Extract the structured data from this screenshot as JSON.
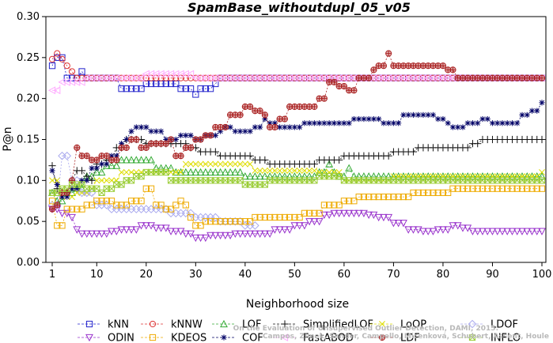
{
  "chart_data": {
    "type": "line",
    "title": "SpamBase_withoutdupl_05_v05",
    "xlabel": "Neighborhood size",
    "ylabel": "P@n",
    "xlim": [
      1,
      100
    ],
    "ylim": [
      0,
      0.3
    ],
    "xticks": [
      1,
      10,
      20,
      30,
      40,
      50,
      60,
      70,
      80,
      90,
      100
    ],
    "yticks": [
      0.0,
      0.05,
      0.1,
      0.15,
      0.2,
      0.25,
      0.3
    ],
    "ytick_labels": [
      "0.00",
      "0.05",
      "0.10",
      "0.15",
      "0.20",
      "0.25",
      "0.30"
    ],
    "grid": false,
    "legend_position": "bottom",
    "watermark": [
      "Campos, Zimek, Sander, Campello, Micenková, Schubert, Assent, Houle",
      "On the Evaluation of Unsupervised Outlier Detection, DAMI, 2015."
    ],
    "series": [
      {
        "name": "kNN",
        "color": "#2222cc",
        "marker": "square",
        "points": [
          [
            1,
            0.24
          ],
          [
            2,
            0.25
          ],
          [
            3,
            0.25
          ],
          [
            4,
            0.225
          ],
          [
            6,
            0.225
          ],
          [
            7,
            0.233
          ],
          [
            8,
            0.225
          ],
          [
            14,
            0.225
          ],
          [
            15,
            0.212
          ],
          [
            19,
            0.212
          ],
          [
            20,
            0.218
          ],
          [
            26,
            0.218
          ],
          [
            27,
            0.212
          ],
          [
            29,
            0.212
          ],
          [
            30,
            0.205
          ],
          [
            31,
            0.212
          ],
          [
            33,
            0.212
          ],
          [
            34,
            0.218
          ],
          [
            35,
            0.225
          ],
          [
            100,
            0.225
          ]
        ]
      },
      {
        "name": "kNNW",
        "color": "#dd3333",
        "marker": "circle",
        "points": [
          [
            1,
            0.248
          ],
          [
            2,
            0.255
          ],
          [
            3,
            0.248
          ],
          [
            4,
            0.24
          ],
          [
            5,
            0.233
          ],
          [
            6,
            0.225
          ],
          [
            100,
            0.225
          ]
        ]
      },
      {
        "name": "LOF",
        "color": "#33aa33",
        "marker": "triangle-up",
        "points": [
          [
            1,
            0.085
          ],
          [
            2,
            0.075
          ],
          [
            4,
            0.085
          ],
          [
            6,
            0.09
          ],
          [
            8,
            0.105
          ],
          [
            10,
            0.11
          ],
          [
            12,
            0.118
          ],
          [
            15,
            0.125
          ],
          [
            18,
            0.125
          ],
          [
            22,
            0.115
          ],
          [
            26,
            0.11
          ],
          [
            30,
            0.11
          ],
          [
            40,
            0.105
          ],
          [
            55,
            0.11
          ],
          [
            57,
            0.12
          ],
          [
            58,
            0.11
          ],
          [
            59,
            0.105
          ],
          [
            61,
            0.115
          ],
          [
            62,
            0.105
          ],
          [
            70,
            0.105
          ],
          [
            80,
            0.105
          ],
          [
            90,
            0.105
          ],
          [
            100,
            0.105
          ]
        ]
      },
      {
        "name": "SimplifiedLOF",
        "color": "#111111",
        "marker": "plus",
        "points": [
          [
            1,
            0.118
          ],
          [
            2,
            0.09
          ],
          [
            3,
            0.085
          ],
          [
            5,
            0.1
          ],
          [
            6,
            0.112
          ],
          [
            8,
            0.105
          ],
          [
            9,
            0.1
          ],
          [
            10,
            0.12
          ],
          [
            12,
            0.125
          ],
          [
            14,
            0.14
          ],
          [
            16,
            0.15
          ],
          [
            18,
            0.15
          ],
          [
            20,
            0.145
          ],
          [
            26,
            0.145
          ],
          [
            29,
            0.14
          ],
          [
            31,
            0.135
          ],
          [
            35,
            0.13
          ],
          [
            39,
            0.13
          ],
          [
            42,
            0.125
          ],
          [
            45,
            0.12
          ],
          [
            52,
            0.12
          ],
          [
            55,
            0.125
          ],
          [
            60,
            0.13
          ],
          [
            66,
            0.13
          ],
          [
            70,
            0.135
          ],
          [
            75,
            0.14
          ],
          [
            83,
            0.14
          ],
          [
            86,
            0.145
          ],
          [
            88,
            0.15
          ],
          [
            100,
            0.15
          ]
        ]
      },
      {
        "name": "LoOP",
        "color": "#dddd00",
        "marker": "x",
        "points": [
          [
            1,
            0.1
          ],
          [
            3,
            0.08
          ],
          [
            6,
            0.085
          ],
          [
            9,
            0.09
          ],
          [
            10,
            0.1
          ],
          [
            15,
            0.11
          ],
          [
            22,
            0.11
          ],
          [
            28,
            0.12
          ],
          [
            33,
            0.12
          ],
          [
            42,
            0.112
          ],
          [
            50,
            0.112
          ],
          [
            55,
            0.11
          ],
          [
            60,
            0.1
          ],
          [
            70,
            0.105
          ],
          [
            80,
            0.105
          ],
          [
            90,
            0.105
          ],
          [
            100,
            0.11
          ]
        ]
      },
      {
        "name": "LDOF",
        "color": "#aaaaee",
        "marker": "diamond",
        "points": [
          [
            1,
            0.07
          ],
          [
            3,
            0.13
          ],
          [
            5,
            0.1
          ],
          [
            7,
            0.085
          ],
          [
            10,
            0.07
          ],
          [
            13,
            0.065
          ],
          [
            18,
            0.065
          ],
          [
            22,
            0.065
          ],
          [
            25,
            0.06
          ],
          [
            30,
            0.055
          ],
          [
            35,
            0.05
          ],
          [
            40,
            0.045
          ],
          [
            42,
            0.045
          ]
        ]
      },
      {
        "name": "ODIN",
        "color": "#9933cc",
        "marker": "triangle-down",
        "points": [
          [
            1,
            0.065
          ],
          [
            3,
            0.06
          ],
          [
            5,
            0.055
          ],
          [
            6,
            0.04
          ],
          [
            7,
            0.035
          ],
          [
            10,
            0.035
          ],
          [
            13,
            0.038
          ],
          [
            15,
            0.04
          ],
          [
            17,
            0.04
          ],
          [
            19,
            0.045
          ],
          [
            22,
            0.042
          ],
          [
            25,
            0.038
          ],
          [
            28,
            0.035
          ],
          [
            30,
            0.03
          ],
          [
            33,
            0.033
          ],
          [
            38,
            0.035
          ],
          [
            42,
            0.035
          ],
          [
            46,
            0.04
          ],
          [
            50,
            0.045
          ],
          [
            53,
            0.05
          ],
          [
            56,
            0.058
          ],
          [
            58,
            0.06
          ],
          [
            62,
            0.06
          ],
          [
            65,
            0.058
          ],
          [
            67,
            0.055
          ],
          [
            70,
            0.048
          ],
          [
            73,
            0.04
          ],
          [
            76,
            0.038
          ],
          [
            79,
            0.04
          ],
          [
            82,
            0.045
          ],
          [
            84,
            0.042
          ],
          [
            86,
            0.038
          ],
          [
            100,
            0.038
          ]
        ]
      },
      {
        "name": "KDEOS",
        "color": "#eeaa00",
        "marker": "square",
        "points": [
          [
            1,
            0.075
          ],
          [
            2,
            0.045
          ],
          [
            4,
            0.065
          ],
          [
            8,
            0.07
          ],
          [
            10,
            0.075
          ],
          [
            14,
            0.07
          ],
          [
            17,
            0.075
          ],
          [
            19,
            0.075
          ],
          [
            20,
            0.09
          ],
          [
            22,
            0.07
          ],
          [
            24,
            0.065
          ],
          [
            26,
            0.07
          ],
          [
            27,
            0.075
          ],
          [
            28,
            0.07
          ],
          [
            29,
            0.055
          ],
          [
            30,
            0.045
          ],
          [
            32,
            0.05
          ],
          [
            42,
            0.055
          ],
          [
            50,
            0.055
          ],
          [
            52,
            0.06
          ],
          [
            56,
            0.07
          ],
          [
            60,
            0.075
          ],
          [
            63,
            0.08
          ],
          [
            70,
            0.08
          ],
          [
            74,
            0.085
          ],
          [
            80,
            0.085
          ],
          [
            82,
            0.09
          ],
          [
            90,
            0.09
          ],
          [
            100,
            0.09
          ]
        ]
      },
      {
        "name": "COF",
        "color": "#000066",
        "marker": "star",
        "points": [
          [
            1,
            0.112
          ],
          [
            2,
            0.095
          ],
          [
            3,
            0.08
          ],
          [
            5,
            0.09
          ],
          [
            7,
            0.1
          ],
          [
            9,
            0.115
          ],
          [
            11,
            0.12
          ],
          [
            13,
            0.13
          ],
          [
            15,
            0.145
          ],
          [
            16,
            0.15
          ],
          [
            17,
            0.16
          ],
          [
            18,
            0.165
          ],
          [
            21,
            0.16
          ],
          [
            24,
            0.15
          ],
          [
            27,
            0.155
          ],
          [
            30,
            0.15
          ],
          [
            32,
            0.155
          ],
          [
            35,
            0.16
          ],
          [
            36,
            0.165
          ],
          [
            38,
            0.16
          ],
          [
            42,
            0.165
          ],
          [
            44,
            0.175
          ],
          [
            45,
            0.17
          ],
          [
            47,
            0.165
          ],
          [
            50,
            0.165
          ],
          [
            52,
            0.17
          ],
          [
            55,
            0.17
          ],
          [
            60,
            0.17
          ],
          [
            62,
            0.175
          ],
          [
            65,
            0.175
          ],
          [
            68,
            0.17
          ],
          [
            72,
            0.18
          ],
          [
            76,
            0.18
          ],
          [
            79,
            0.175
          ],
          [
            81,
            0.17
          ],
          [
            82,
            0.165
          ],
          [
            85,
            0.17
          ],
          [
            88,
            0.175
          ],
          [
            90,
            0.17
          ],
          [
            94,
            0.17
          ],
          [
            96,
            0.18
          ],
          [
            98,
            0.185
          ],
          [
            100,
            0.195
          ]
        ]
      },
      {
        "name": "FastABOD",
        "color": "#ffaaff",
        "marker": "triangle-left",
        "points": [
          [
            1,
            0.21
          ],
          [
            3,
            0.22
          ],
          [
            8,
            0.225
          ],
          [
            14,
            0.225
          ],
          [
            20,
            0.23
          ],
          [
            30,
            0.225
          ],
          [
            40,
            0.225
          ],
          [
            100,
            0.225
          ]
        ]
      },
      {
        "name": "LDF",
        "color": "#aa2222",
        "marker": "circle-plus",
        "points": [
          [
            1,
            0.065
          ],
          [
            2,
            0.07
          ],
          [
            3,
            0.085
          ],
          [
            5,
            0.1
          ],
          [
            6,
            0.14
          ],
          [
            7,
            0.13
          ],
          [
            9,
            0.125
          ],
          [
            11,
            0.13
          ],
          [
            13,
            0.125
          ],
          [
            15,
            0.14
          ],
          [
            17,
            0.15
          ],
          [
            19,
            0.14
          ],
          [
            21,
            0.145
          ],
          [
            23,
            0.145
          ],
          [
            25,
            0.15
          ],
          [
            26,
            0.13
          ],
          [
            28,
            0.14
          ],
          [
            30,
            0.15
          ],
          [
            32,
            0.155
          ],
          [
            34,
            0.165
          ],
          [
            37,
            0.18
          ],
          [
            40,
            0.19
          ],
          [
            42,
            0.185
          ],
          [
            44,
            0.18
          ],
          [
            45,
            0.165
          ],
          [
            47,
            0.175
          ],
          [
            49,
            0.19
          ],
          [
            52,
            0.19
          ],
          [
            55,
            0.2
          ],
          [
            57,
            0.22
          ],
          [
            59,
            0.215
          ],
          [
            61,
            0.21
          ],
          [
            63,
            0.225
          ],
          [
            66,
            0.235
          ],
          [
            67,
            0.24
          ],
          [
            69,
            0.255
          ],
          [
            70,
            0.24
          ],
          [
            73,
            0.24
          ],
          [
            78,
            0.24
          ],
          [
            81,
            0.235
          ],
          [
            83,
            0.225
          ],
          [
            100,
            0.225
          ]
        ]
      },
      {
        "name": "INFLO",
        "color": "#99cc33",
        "marker": "hourglass",
        "points": [
          [
            1,
            0.085
          ],
          [
            3,
            0.09
          ],
          [
            5,
            0.095
          ],
          [
            8,
            0.09
          ],
          [
            11,
            0.085
          ],
          [
            12,
            0.09
          ],
          [
            14,
            0.095
          ],
          [
            16,
            0.1
          ],
          [
            18,
            0.105
          ],
          [
            20,
            0.11
          ],
          [
            25,
            0.1
          ],
          [
            30,
            0.1
          ],
          [
            35,
            0.1
          ],
          [
            40,
            0.095
          ],
          [
            45,
            0.1
          ],
          [
            50,
            0.1
          ],
          [
            55,
            0.105
          ],
          [
            60,
            0.1
          ],
          [
            70,
            0.1
          ],
          [
            80,
            0.1
          ],
          [
            90,
            0.1
          ],
          [
            95,
            0.1
          ],
          [
            100,
            0.1
          ]
        ]
      }
    ]
  }
}
